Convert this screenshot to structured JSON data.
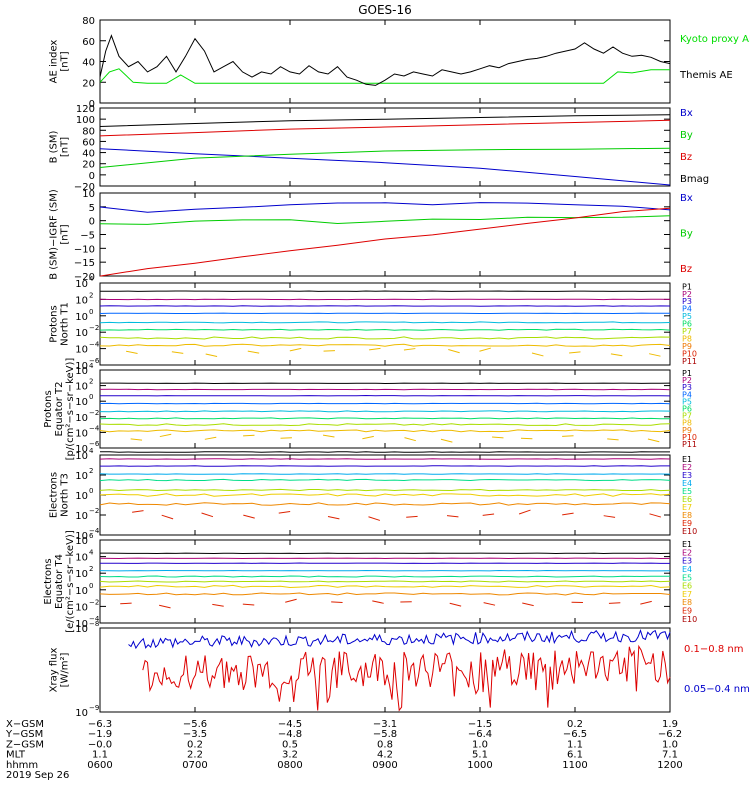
{
  "title": "GOES-16",
  "chart_data": [
    {
      "type": "line",
      "panel": "ae",
      "ylabel_lines": [
        "AE index",
        "[nT]"
      ],
      "ylim": [
        0,
        80
      ],
      "yticks": [
        "0",
        "20",
        "40",
        "60",
        "80"
      ],
      "series": [
        {
          "name": "Kyoto proxy AE",
          "color": "#00dd00",
          "x": [
            6.0,
            6.1,
            6.2,
            6.35,
            6.5,
            6.7,
            6.85,
            7.0,
            7.2,
            7.4,
            7.6,
            8.0,
            8.4,
            8.8,
            9.2,
            9.6,
            10.0,
            10.4,
            10.6,
            10.7,
            10.8,
            10.95,
            11.1,
            11.3,
            11.45,
            11.6,
            11.8,
            12.0
          ],
          "y": [
            20,
            30,
            33,
            20,
            19,
            19,
            27,
            19,
            19,
            19,
            19,
            19,
            19,
            19,
            19,
            19,
            19,
            19,
            19,
            19,
            19,
            19,
            19,
            19,
            30,
            29,
            32,
            32
          ]
        },
        {
          "name": "Themis AE",
          "color": "#000000",
          "x": [
            6.0,
            6.06,
            6.12,
            6.2,
            6.3,
            6.4,
            6.5,
            6.6,
            6.7,
            6.8,
            6.9,
            7.0,
            7.1,
            7.2,
            7.3,
            7.4,
            7.5,
            7.6,
            7.7,
            7.8,
            7.9,
            8.0,
            8.1,
            8.2,
            8.3,
            8.4,
            8.5,
            8.6,
            8.7,
            8.8,
            8.9,
            9.0,
            9.1,
            9.2,
            9.3,
            9.4,
            9.5,
            9.6,
            9.7,
            9.8,
            9.9,
            10.0,
            10.1,
            10.2,
            10.3,
            10.4,
            10.5,
            10.6,
            10.7,
            10.8,
            10.9,
            11.0,
            11.1,
            11.2,
            11.3,
            11.4,
            11.5,
            11.6,
            11.7,
            11.8,
            11.9,
            12.0
          ],
          "y": [
            25,
            50,
            65,
            45,
            35,
            40,
            30,
            35,
            45,
            30,
            45,
            62,
            50,
            30,
            35,
            40,
            30,
            25,
            30,
            28,
            35,
            30,
            28,
            36,
            30,
            28,
            35,
            25,
            22,
            18,
            17,
            22,
            28,
            26,
            30,
            28,
            26,
            32,
            30,
            28,
            30,
            33,
            36,
            34,
            38,
            40,
            42,
            43,
            45,
            48,
            50,
            52,
            58,
            52,
            48,
            54,
            48,
            45,
            46,
            44,
            40,
            38
          ]
        }
      ]
    },
    {
      "type": "line",
      "panel": "bsm",
      "ylabel_lines": [
        "B (SM)",
        "[nT]"
      ],
      "ylim": [
        -20,
        120
      ],
      "yticks": [
        "−20",
        "0",
        "20",
        "40",
        "60",
        "80",
        "100",
        "120"
      ],
      "series": [
        {
          "name": "Bx",
          "color": "#0000cc",
          "x": [
            6,
            7,
            8,
            9,
            10,
            11,
            12
          ],
          "y": [
            47,
            38,
            30,
            22,
            12,
            -3,
            -18
          ]
        },
        {
          "name": "By",
          "color": "#00cc00",
          "x": [
            6,
            7,
            8,
            9,
            10,
            11,
            12
          ],
          "y": [
            13,
            30,
            37,
            43,
            45,
            46,
            48
          ]
        },
        {
          "name": "Bz",
          "color": "#dd0000",
          "x": [
            6,
            7,
            8,
            9,
            10,
            11,
            12
          ],
          "y": [
            70,
            76,
            82,
            86,
            90,
            94,
            98
          ]
        },
        {
          "name": "Bmag",
          "color": "#000000",
          "x": [
            6,
            7,
            8,
            9,
            10,
            11,
            12
          ],
          "y": [
            87,
            92,
            97,
            100,
            103,
            106,
            108
          ]
        }
      ]
    },
    {
      "type": "line",
      "panel": "bdiff",
      "ylabel_lines": [
        "B (SM)−IGRF (SM)",
        "[nT]"
      ],
      "ylim": [
        -20,
        10
      ],
      "yticks": [
        "−20",
        "−15",
        "−10",
        "−5",
        "0",
        "5",
        "10"
      ],
      "series": [
        {
          "name": "Bx",
          "color": "#0000cc",
          "x": [
            6,
            6.5,
            7,
            7.5,
            8,
            8.5,
            9,
            9.5,
            10,
            10.5,
            11,
            11.5,
            12
          ],
          "y": [
            5,
            3,
            4,
            5,
            6,
            6,
            6.5,
            6,
            6.5,
            6.5,
            6,
            5,
            4
          ]
        },
        {
          "name": "By",
          "color": "#00cc00",
          "x": [
            6,
            6.5,
            7,
            7.5,
            8,
            8.5,
            9,
            9.5,
            10,
            10.5,
            11,
            11.5,
            12
          ],
          "y": [
            -1,
            -1,
            -0.5,
            0.5,
            0,
            -1,
            0,
            0.5,
            0.5,
            1,
            1,
            1.5,
            2
          ]
        },
        {
          "name": "Bz",
          "color": "#dd0000",
          "x": [
            6,
            6.5,
            7,
            7.5,
            8,
            8.5,
            9,
            9.5,
            10,
            10.5,
            11,
            11.5,
            12
          ],
          "y": [
            -20,
            -17,
            -15,
            -13,
            -11,
            -9,
            -7,
            -5,
            -3,
            -1,
            1,
            3,
            4.5
          ]
        }
      ]
    },
    {
      "type": "line",
      "panel": "pn",
      "ylabel_lines": [
        "Protons",
        "North T1"
      ],
      "ylog": [
        -6,
        4
      ],
      "ydecades": [
        -6,
        -4,
        -2,
        0,
        2,
        4
      ],
      "series": [
        {
          "name": "P1",
          "color": "#000000",
          "log_level": 3.0
        },
        {
          "name": "P2",
          "color": "#aa0077",
          "log_level": 2.0
        },
        {
          "name": "P3",
          "color": "#2200cc",
          "log_level": 1.2
        },
        {
          "name": "P4",
          "color": "#0066ff",
          "log_level": 0.3
        },
        {
          "name": "P5",
          "color": "#00bbdd",
          "log_level": -0.8
        },
        {
          "name": "P6",
          "color": "#00dd66",
          "log_level": -1.7
        },
        {
          "name": "P7",
          "color": "#aadd00",
          "log_level": -2.7
        },
        {
          "name": "P8",
          "color": "#eebb00",
          "log_level": -3.6
        }
      ],
      "legend": [
        "P1",
        "P2",
        "P3",
        "P4",
        "P5",
        "P6",
        "P7",
        "P8",
        "P9",
        "P10",
        "P11"
      ],
      "legend_colors": [
        "#000000",
        "#aa0077",
        "#2200cc",
        "#0066ff",
        "#00bbdd",
        "#00dd66",
        "#aadd00",
        "#eebb00",
        "#ee7700",
        "#dd2200",
        "#aa0000"
      ]
    },
    {
      "type": "line",
      "panel": "pe",
      "ylabel_lines": [
        "Protons",
        "Equator T2",
        "[p/(cm²−s−sr−keV)]"
      ],
      "ylog": [
        -6,
        4
      ],
      "ydecades": [
        -6,
        -4,
        -2,
        0,
        2,
        4
      ],
      "series": [
        {
          "name": "P1",
          "color": "#000000",
          "log_level": 2.3
        },
        {
          "name": "P2",
          "color": "#aa0077",
          "log_level": 1.5
        },
        {
          "name": "P3",
          "color": "#2200cc",
          "log_level": 0.7
        },
        {
          "name": "P4",
          "color": "#0066ff",
          "log_level": -0.3
        },
        {
          "name": "P5",
          "color": "#00bbdd",
          "log_level": -1.3
        },
        {
          "name": "P6",
          "color": "#00dd66",
          "log_level": -2.2
        },
        {
          "name": "P7",
          "color": "#aadd00",
          "log_level": -3.0
        },
        {
          "name": "P8",
          "color": "#eebb00",
          "log_level": -3.8
        }
      ],
      "legend": [
        "P1",
        "P2",
        "P3",
        "P4",
        "P5",
        "P6",
        "P7",
        "P8",
        "P9",
        "P10",
        "P11"
      ],
      "legend_colors": [
        "#000000",
        "#aa0077",
        "#2200cc",
        "#0066ff",
        "#00bbdd",
        "#00dd66",
        "#aadd00",
        "#eebb00",
        "#ee7700",
        "#dd2200",
        "#aa0000"
      ]
    },
    {
      "type": "line",
      "panel": "en",
      "ylabel_lines": [
        "Electrons",
        "North T3"
      ],
      "ylog": [
        -4,
        4
      ],
      "ydecades": [
        -4,
        -2,
        0,
        2,
        4
      ],
      "series": [
        {
          "name": "E1",
          "color": "#000000",
          "log_level": 4.3
        },
        {
          "name": "E2",
          "color": "#aa0077",
          "log_level": 3.6
        },
        {
          "name": "E3",
          "color": "#2200cc",
          "log_level": 2.9
        },
        {
          "name": "E4",
          "color": "#00aaee",
          "log_level": 2.1
        },
        {
          "name": "E5",
          "color": "#00dd88",
          "log_level": 1.5
        },
        {
          "name": "E6",
          "color": "#aadd00",
          "log_level": 0.5
        },
        {
          "name": "E7",
          "color": "#eecc00",
          "log_level": 0.0
        },
        {
          "name": "E8",
          "color": "#ee8800",
          "log_level": -0.9
        }
      ],
      "legend": [
        "E1",
        "E2",
        "E3",
        "E4",
        "E5",
        "E6",
        "E7",
        "E8",
        "E9",
        "E10"
      ],
      "legend_colors": [
        "#000000",
        "#aa0077",
        "#2200cc",
        "#00aaee",
        "#00dd88",
        "#aadd00",
        "#eecc00",
        "#ee8800",
        "#dd2200",
        "#aa0000"
      ]
    },
    {
      "type": "line",
      "panel": "ee",
      "ylabel_lines": [
        "Electrons",
        "Equator T4",
        "[e/(cm²−s−sr−keV)]"
      ],
      "ylog": [
        -4,
        6
      ],
      "ydecades": [
        -4,
        -2,
        0,
        2,
        4,
        6
      ],
      "series": [
        {
          "name": "E1",
          "color": "#000000",
          "log_level": 4.4
        },
        {
          "name": "E2",
          "color": "#aa0077",
          "log_level": 3.8
        },
        {
          "name": "E3",
          "color": "#2200cc",
          "log_level": 3.2
        },
        {
          "name": "E4",
          "color": "#00aaee",
          "log_level": 2.3
        },
        {
          "name": "E5",
          "color": "#00dd88",
          "log_level": 1.6
        },
        {
          "name": "E6",
          "color": "#aadd00",
          "log_level": 1.0
        },
        {
          "name": "E7",
          "color": "#eecc00",
          "log_level": 0.4
        },
        {
          "name": "E8",
          "color": "#ee8800",
          "log_level": -0.5
        }
      ],
      "legend": [
        "E1",
        "E2",
        "E3",
        "E4",
        "E5",
        "E6",
        "E7",
        "E8",
        "E9",
        "E10"
      ],
      "legend_colors": [
        "#000000",
        "#aa0077",
        "#2200cc",
        "#00aaee",
        "#00dd88",
        "#aadd00",
        "#eecc00",
        "#ee8800",
        "#dd2200",
        "#aa0000"
      ]
    },
    {
      "type": "line",
      "panel": "xray",
      "ylabel_lines": [
        "Xray flux",
        "[W/m²]"
      ],
      "ylog": [
        -9,
        -8
      ],
      "ydecades": [
        -9,
        -8
      ],
      "series": [
        {
          "name": "0.1−0.8 nm",
          "color": "#dd0000",
          "x_start": 6.45,
          "noisy": true
        },
        {
          "name": "0.05−0.4 nm",
          "color": "#0000cc",
          "x_start": 6.3,
          "noisy": true
        }
      ]
    }
  ],
  "time_axis": {
    "x_range": [
      6,
      12
    ],
    "row_labels": [
      "X−GSM",
      "Y−GSM",
      "Z−GSM",
      "MLT",
      "hhmm"
    ],
    "columns": [
      {
        "x": 6,
        "values": [
          "−6.3",
          "−1.9",
          "−0.0",
          "1.1",
          "0600"
        ]
      },
      {
        "x": 7,
        "values": [
          "−5.6",
          "−3.5",
          "0.2",
          "2.2",
          "0700"
        ]
      },
      {
        "x": 8,
        "values": [
          "−4.5",
          "−4.8",
          "0.5",
          "3.2",
          "0800"
        ]
      },
      {
        "x": 9,
        "values": [
          "−3.1",
          "−5.8",
          "0.8",
          "4.2",
          "0900"
        ]
      },
      {
        "x": 10,
        "values": [
          "−1.5",
          "−6.4",
          "1.0",
          "5.1",
          "1000"
        ]
      },
      {
        "x": 11,
        "values": [
          "0.2",
          "−6.5",
          "1.1",
          "6.1",
          "1100"
        ]
      },
      {
        "x": 12,
        "values": [
          "1.9",
          "−6.2",
          "1.0",
          "7.1",
          "1200"
        ]
      }
    ],
    "date": "2019 Sep 26"
  }
}
